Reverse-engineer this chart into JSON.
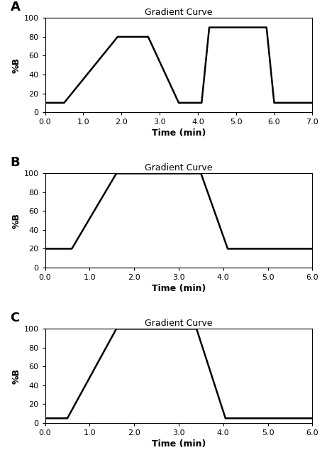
{
  "title": "Gradient Curve",
  "xlabel": "Time (min)",
  "ylabel": "%B",
  "panel_labels": [
    "A",
    "B",
    "C"
  ],
  "background_color": "#ffffff",
  "line_color": "#000000",
  "line_width": 1.8,
  "A": {
    "x": [
      0.0,
      0.5,
      1.9,
      2.7,
      3.5,
      4.1,
      4.3,
      5.8,
      6.0,
      7.0
    ],
    "y": [
      10,
      10,
      80,
      80,
      10,
      10,
      90,
      90,
      10,
      10
    ],
    "xlim": [
      0.0,
      7.0
    ],
    "ylim": [
      0,
      100
    ],
    "xticks": [
      0.0,
      1.0,
      2.0,
      3.0,
      4.0,
      5.0,
      6.0,
      7.0
    ],
    "yticks": [
      0,
      20,
      40,
      60,
      80,
      100
    ]
  },
  "B": {
    "x": [
      0.0,
      0.6,
      1.6,
      3.5,
      4.1,
      6.0
    ],
    "y": [
      20,
      20,
      100,
      100,
      20,
      20
    ],
    "xlim": [
      0.0,
      6.0
    ],
    "ylim": [
      0,
      100
    ],
    "xticks": [
      0.0,
      1.0,
      2.0,
      3.0,
      4.0,
      5.0,
      6.0
    ],
    "yticks": [
      0,
      20,
      40,
      60,
      80,
      100
    ]
  },
  "C": {
    "x": [
      0.0,
      0.5,
      1.6,
      3.4,
      4.05,
      6.0
    ],
    "y": [
      5,
      5,
      100,
      100,
      5,
      5
    ],
    "xlim": [
      0.0,
      6.0
    ],
    "ylim": [
      0,
      100
    ],
    "xticks": [
      0.0,
      1.0,
      2.0,
      3.0,
      4.0,
      5.0,
      6.0
    ],
    "yticks": [
      0,
      20,
      40,
      60,
      80,
      100
    ]
  }
}
